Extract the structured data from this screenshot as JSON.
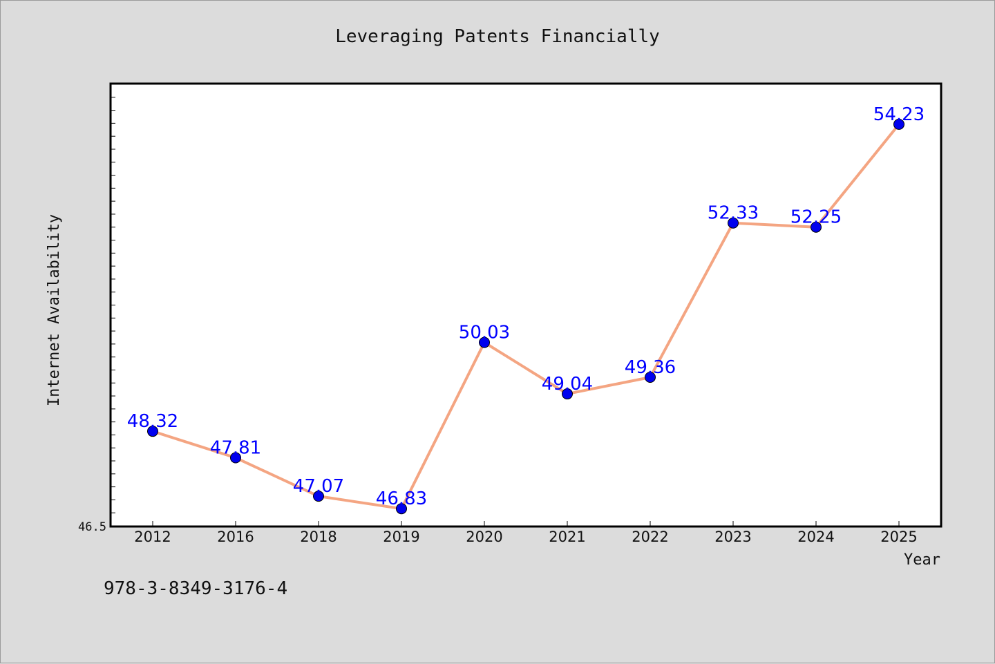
{
  "footer": {
    "isbn": "978-3-8349-3176-4"
  },
  "chart_data": {
    "type": "line",
    "title": "Leveraging Patents Financially",
    "xlabel": "Year",
    "ylabel": "Internet Availability",
    "categories": [
      "2012",
      "2016",
      "2018",
      "2019",
      "2020",
      "2021",
      "2022",
      "2023",
      "2024",
      "2025"
    ],
    "series": [
      {
        "values": [
          48.32,
          47.81,
          47.07,
          46.83,
          50.03,
          49.04,
          49.36,
          52.33,
          52.25,
          54.23
        ]
      }
    ],
    "data_labels": [
      "48.32",
      "47.81",
      "47.07",
      "46.83",
      "50.03",
      "49.04",
      "49.36",
      "52.33",
      "52.25",
      "54.23"
    ],
    "ylim": [
      46.5,
      55.0
    ],
    "y_tick_labels": [
      "46.5"
    ],
    "grid": false,
    "colors": {
      "line": "#f4a582",
      "marker": "#0000ee",
      "data_label": "#0000ff",
      "background": "#dcdcdc",
      "plot_area": "#ffffff"
    }
  }
}
